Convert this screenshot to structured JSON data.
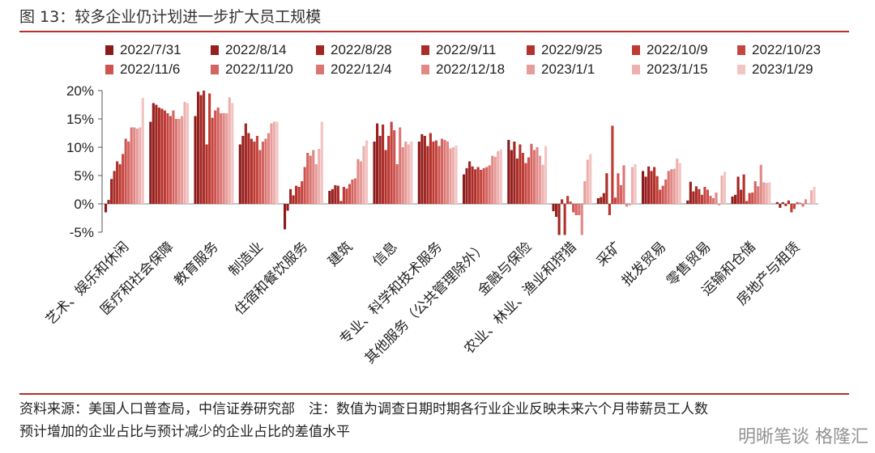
{
  "figure": {
    "title": "图 13：较多企业仍计划进一步扩大员工规模",
    "source_note_line1": "资料来源：美国人口普查局，中信证券研究部　注：数值为调查日期时期各行业企业反映未来六个月带薪员工人数",
    "source_note_line2": "预计增加的企业占比与预计减少的企业占比的差值水平",
    "watermark": "明晰笔谈 格隆汇"
  },
  "chart_data": {
    "type": "bar",
    "ylim": [
      -5,
      20
    ],
    "yticks": [
      -5,
      0,
      5,
      10,
      15,
      20
    ],
    "ytick_labels": [
      "-5%",
      "0%",
      "5%",
      "10%",
      "15%",
      "20%"
    ],
    "grid": false,
    "legend_position": "top",
    "categories": [
      "艺术、娱乐和休闲",
      "医疗和社会保障",
      "教育服务",
      "制造业",
      "住宿和餐饮服务",
      "建筑",
      "信息",
      "专业、科学和技术服务",
      "其他服务（公共管理除外）",
      "金融与保险",
      "农业、林业、渔业和狩猎",
      "采矿",
      "批发贸易",
      "零售贸易",
      "运输和仓储",
      "房地产与租赁"
    ],
    "series": [
      {
        "name": "2022/7/31",
        "color": "#8b1a1a",
        "values": [
          -1.5,
          14.5,
          15.5,
          10.5,
          -4.5,
          2.3,
          11.0,
          11.0,
          5.2,
          11.3,
          -1.3,
          1.0,
          5.8,
          0.6,
          1.3,
          0.3
        ]
      },
      {
        "name": "2022/8/14",
        "color": "#96201f",
        "values": [
          0.7,
          17.8,
          19.8,
          12.0,
          -1.2,
          2.6,
          14.2,
          12.3,
          6.3,
          9.5,
          -2.3,
          1.2,
          4.8,
          3.9,
          1.6,
          -0.7
        ]
      },
      {
        "name": "2022/8/28",
        "color": "#a02623",
        "values": [
          4.4,
          17.5,
          19.2,
          14.2,
          2.6,
          3.3,
          12.0,
          12.0,
          7.5,
          11.0,
          -5.5,
          1.9,
          6.6,
          2.2,
          4.8,
          0.3
        ]
      },
      {
        "name": "2022/9/11",
        "color": "#aa2c27",
        "values": [
          5.8,
          17.0,
          20.0,
          12.5,
          1.5,
          3.2,
          14.0,
          10.2,
          6.6,
          8.0,
          0.8,
          5.4,
          5.8,
          3.1,
          2.5,
          -0.4
        ]
      },
      {
        "name": "2022/9/25",
        "color": "#b4322c",
        "values": [
          7.5,
          16.8,
          10.5,
          11.5,
          3.2,
          0.5,
          9.5,
          12.5,
          6.1,
          10.5,
          -5.5,
          -2.0,
          6.5,
          2.6,
          5.2,
          0.6
        ]
      },
      {
        "name": "2022/10/9",
        "color": "#be3a32",
        "values": [
          7.0,
          16.5,
          19.5,
          11.0,
          3.0,
          3.0,
          12.0,
          11.0,
          6.5,
          9.0,
          1.4,
          13.8,
          4.9,
          1.6,
          0.5,
          -1.5
        ]
      },
      {
        "name": "2022/10/23",
        "color": "#c64540",
        "values": [
          8.8,
          16.0,
          15.2,
          12.0,
          4.0,
          2.7,
          14.5,
          11.2,
          6.0,
          7.2,
          0.4,
          1.1,
          2.5,
          3.0,
          1.9,
          -0.9
        ]
      },
      {
        "name": "2022/11/6",
        "color": "#cd5450",
        "values": [
          11.5,
          15.5,
          16.5,
          9.5,
          6.5,
          3.5,
          13.0,
          10.2,
          6.3,
          8.2,
          -1.5,
          5.4,
          3.2,
          2.5,
          2.0,
          0.3
        ]
      },
      {
        "name": "2022/11/20",
        "color": "#d46460",
        "values": [
          11.0,
          16.5,
          17.0,
          11.0,
          9.0,
          4.3,
          7.0,
          11.5,
          6.5,
          10.6,
          -2.0,
          3.3,
          4.3,
          1.4,
          4.0,
          0.2
        ]
      },
      {
        "name": "2022/12/4",
        "color": "#db7673",
        "values": [
          13.5,
          15.0,
          16.0,
          11.5,
          8.5,
          4.5,
          13.5,
          11.3,
          6.8,
          9.5,
          -2.0,
          6.8,
          5.8,
          1.0,
          3.1,
          -0.5
        ]
      },
      {
        "name": "2022/12/18",
        "color": "#e18986",
        "values": [
          13.5,
          15.0,
          16.0,
          12.5,
          9.5,
          7.9,
          10.0,
          11.0,
          8.5,
          10.0,
          -5.5,
          -0.5,
          6.1,
          2.0,
          6.9,
          0.8
        ]
      },
      {
        "name": "2023/1/1",
        "color": "#e79c99",
        "values": [
          13.3,
          15.5,
          16.0,
          14.2,
          7.0,
          7.5,
          11.0,
          9.8,
          8.3,
          8.5,
          4.0,
          -0.3,
          6.2,
          -0.3,
          3.8,
          0.1
        ]
      },
      {
        "name": "2023/1/15",
        "color": "#edb0ae",
        "values": [
          13.5,
          18.0,
          18.8,
          14.5,
          9.7,
          10.2,
          10.5,
          10.0,
          9.3,
          6.9,
          7.8,
          6.5,
          8.0,
          5.0,
          3.7,
          2.4
        ]
      },
      {
        "name": "2023/1/29",
        "color": "#f2c4c2",
        "values": [
          18.7,
          17.8,
          17.8,
          14.5,
          14.5,
          11.2,
          11.0,
          10.3,
          9.6,
          10.2,
          8.8,
          7.0,
          7.2,
          5.7,
          3.8,
          3.0
        ]
      }
    ]
  }
}
